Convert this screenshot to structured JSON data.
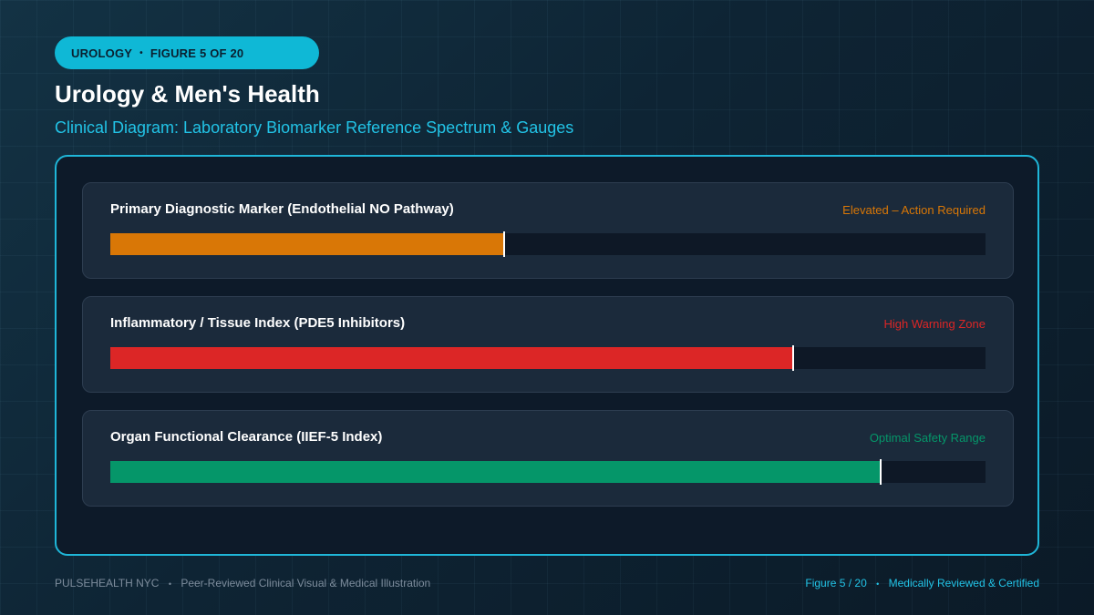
{
  "header": {
    "category": "UROLOGY",
    "figure": "FIGURE 5 OF 20",
    "title": "Urology & Men's Health",
    "subtitle": "Clinical Diagram: Laboratory Biomarker Reference Spectrum & Gauges"
  },
  "gauges": [
    {
      "label": "Primary Diagnostic Marker (Endothelial NO Pathway)",
      "status": "Elevated – Action Required",
      "value": 0.45,
      "color": "#d97706"
    },
    {
      "label": "Inflammatory / Tissue Index (PDE5 Inhibitors)",
      "status": "High Warning Zone",
      "value": 0.78,
      "color": "#dc2626"
    },
    {
      "label": "Organ Functional Clearance (IIEF-5 Index)",
      "status": "Optimal Safety Range",
      "value": 0.88,
      "color": "#059669"
    }
  ],
  "footer": {
    "brand": "PULSEHEALTH NYC",
    "note": "Peer-Reviewed Clinical Visual & Medical Illustration",
    "figure": "Figure 5 / 20",
    "certification": "Medically Reviewed & Certified"
  }
}
